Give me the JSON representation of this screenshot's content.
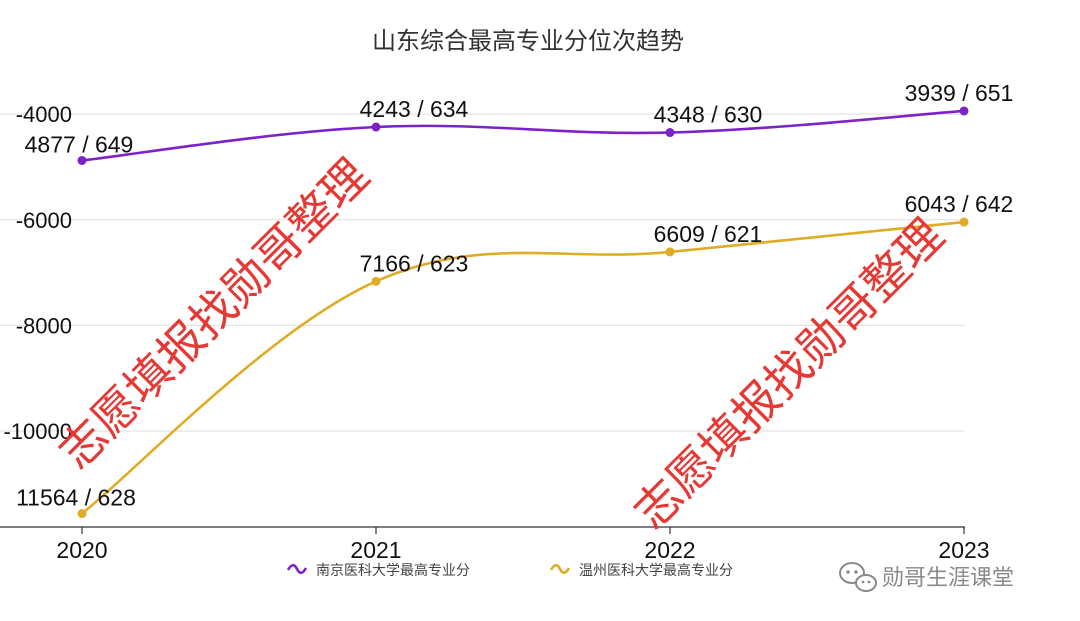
{
  "chart_data": {
    "type": "line",
    "title": "山东综合最高专业分位次趋势",
    "categories": [
      "2020",
      "2021",
      "2022",
      "2023"
    ],
    "y_ticks": [
      "-4000",
      "-6000",
      "-8000",
      "-10000"
    ],
    "ylim": [
      -11800,
      -3400
    ],
    "grid": true,
    "legend_position": "bottom",
    "series": [
      {
        "name": "南京医科大学最高专业分",
        "color": "#7b22c9",
        "values": [
          -4877,
          -4243,
          -4348,
          -3939
        ],
        "labels": [
          "4877 / 649",
          "4243 / 634",
          "4348 / 630",
          "3939 / 651"
        ]
      },
      {
        "name": "温州医科大学最高专业分",
        "color": "#e0ac26",
        "values": [
          -11564,
          -7166,
          -6609,
          -6043
        ],
        "labels": [
          "11564 / 628",
          "7166 / 623",
          "6609 / 621",
          "6043 / 642"
        ]
      }
    ]
  },
  "watermark": "志愿填报找勋哥整理",
  "source_label": "勋哥生涯课堂",
  "source_icon": "wechat-icon"
}
